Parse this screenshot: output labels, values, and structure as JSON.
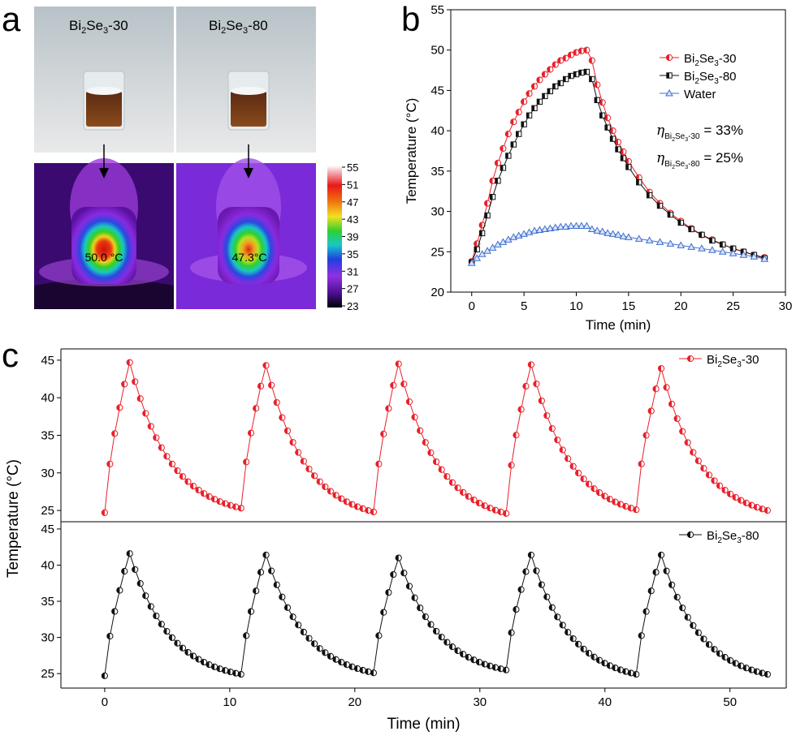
{
  "panel_a": {
    "letter": "a",
    "sample1": {
      "name": "Bi",
      "sub": "2",
      "name2": "Se",
      "sub2": "3",
      "suffix": "-30",
      "temp_label": "50.0 °C"
    },
    "sample2": {
      "name": "Bi",
      "sub": "2",
      "name2": "Se",
      "sub2": "3",
      "suffix": "-80",
      "temp_label": "47.3°C"
    },
    "colorbar": {
      "ticks": [
        55,
        51,
        47,
        43,
        39,
        35,
        31,
        27,
        23
      ]
    }
  },
  "panel_b_letter": "b",
  "panel_c_letter": "c",
  "eta": {
    "e1_sub": "Bi",
    "e1_sub2": "2",
    "e1_sub3": "Se",
    "e1_sub4": "3",
    "e1_sub5": "-30",
    "e1_val": " = 33%",
    "e2_sub": "Bi",
    "e2_sub2": "2",
    "e2_sub3": "Se",
    "e2_sub4": "3",
    "e2_sub5": "-80",
    "e2_val": " = 25%"
  },
  "legend_parts": {
    "bi": "Bi",
    "two": "2",
    "se": "Se",
    "three": "3",
    "s30": "-30",
    "s80": "-80"
  },
  "colors": {
    "red": "#e8202a",
    "black": "#111111",
    "blue": "#3f6fd1"
  },
  "chart_data": [
    {
      "id": "b",
      "type": "line",
      "title": "",
      "xlabel": "Time (min)",
      "ylabel": "Temperature (°C)",
      "xlim": [
        -2,
        30
      ],
      "ylim": [
        20,
        55
      ],
      "xticks": [
        0,
        5,
        10,
        15,
        20,
        25,
        30
      ],
      "yticks": [
        20,
        25,
        30,
        35,
        40,
        45,
        50,
        55
      ],
      "legend_position": "top-right",
      "series": [
        {
          "name": "Bi2Se3-30",
          "color": "#e8202a",
          "marker": "half-circle",
          "x": [
            0,
            0.5,
            1,
            1.5,
            2,
            2.5,
            3,
            3.5,
            4,
            4.5,
            5,
            5.5,
            6,
            6.5,
            7,
            7.5,
            8,
            8.5,
            9,
            9.5,
            10,
            10.5,
            11,
            11.5,
            12,
            12.5,
            13,
            13.5,
            14,
            14.5,
            15,
            16,
            17,
            18,
            19,
            20,
            21,
            22,
            23,
            24,
            25,
            26,
            27,
            28
          ],
          "y": [
            23.8,
            26.0,
            28.3,
            31.0,
            33.8,
            36.0,
            37.8,
            39.6,
            41.1,
            42.3,
            43.6,
            44.6,
            45.5,
            46.3,
            47.0,
            47.6,
            48.2,
            48.7,
            49.0,
            49.4,
            49.7,
            49.9,
            50.0,
            48.7,
            45.7,
            43.5,
            41.6,
            40.0,
            38.6,
            37.4,
            36.2,
            34.2,
            32.4,
            31.0,
            29.8,
            28.8,
            27.9,
            27.1,
            26.5,
            25.9,
            25.4,
            25.0,
            24.6,
            24.3
          ]
        },
        {
          "name": "Bi2Se3-80",
          "color": "#111111",
          "marker": "half-square",
          "x": [
            0,
            0.5,
            1,
            1.5,
            2,
            2.5,
            3,
            3.5,
            4,
            4.5,
            5,
            5.5,
            6,
            6.5,
            7,
            7.5,
            8,
            8.5,
            9,
            9.5,
            10,
            10.5,
            11,
            11.5,
            12,
            12.5,
            13,
            13.5,
            14,
            14.5,
            15,
            16,
            17,
            18,
            19,
            20,
            21,
            22,
            23,
            24,
            25,
            26,
            27,
            28
          ],
          "y": [
            23.7,
            25.3,
            27.3,
            29.5,
            31.8,
            33.8,
            35.4,
            36.9,
            38.3,
            39.6,
            40.8,
            41.9,
            42.8,
            43.6,
            44.3,
            44.9,
            45.5,
            45.9,
            46.4,
            46.8,
            47.0,
            47.2,
            47.3,
            46.4,
            43.8,
            41.9,
            40.4,
            39.0,
            37.7,
            36.6,
            35.5,
            33.6,
            32.0,
            30.7,
            29.6,
            28.6,
            27.8,
            27.1,
            26.4,
            25.9,
            25.4,
            25.0,
            24.6,
            24.2
          ]
        },
        {
          "name": "Water",
          "color": "#3f6fd1",
          "marker": "triangle",
          "x": [
            0,
            0.5,
            1,
            1.5,
            2,
            2.5,
            3,
            3.5,
            4,
            4.5,
            5,
            5.5,
            6,
            6.5,
            7,
            7.5,
            8,
            8.5,
            9,
            9.5,
            10,
            10.5,
            11,
            11.5,
            12,
            12.5,
            13,
            13.5,
            14,
            14.5,
            15,
            16,
            17,
            18,
            19,
            20,
            21,
            22,
            23,
            24,
            25,
            26,
            27,
            28
          ],
          "y": [
            23.6,
            24.2,
            24.7,
            25.1,
            25.5,
            25.9,
            26.2,
            26.5,
            26.8,
            27.0,
            27.2,
            27.4,
            27.6,
            27.7,
            27.8,
            27.9,
            28.0,
            28.1,
            28.1,
            28.2,
            28.2,
            28.2,
            28.2,
            27.8,
            27.6,
            27.5,
            27.3,
            27.2,
            27.1,
            26.9,
            26.8,
            26.6,
            26.4,
            26.2,
            26.0,
            25.8,
            25.6,
            25.4,
            25.2,
            25.0,
            24.8,
            24.6,
            24.4,
            24.1
          ]
        }
      ]
    },
    {
      "id": "c",
      "type": "line",
      "title": "",
      "xlabel": "Time (min)",
      "ylabel": "Temperature (°C)",
      "xlim": [
        -3.5,
        54.5
      ],
      "xticks": [
        0,
        10,
        20,
        30,
        40,
        50
      ],
      "subplots": [
        {
          "series_name": "Bi2Se3-30",
          "color": "#e8202a",
          "marker": "half-circle",
          "ylim": [
            23.5,
            46.5
          ],
          "yticks": [
            25,
            30,
            35,
            40,
            45
          ],
          "cycle_starts": [
            0,
            10.9,
            21.5,
            32.1,
            42.5
          ],
          "peaks": [
            44.7,
            44.3,
            44.5,
            44.4,
            43.9
          ],
          "starts": [
            24.7,
            25.3,
            24.8,
            24.6,
            25.1
          ],
          "final": 25.0
        },
        {
          "series_name": "Bi2Se3-80",
          "color": "#111111",
          "marker": "half-circle",
          "ylim": [
            23.0,
            46.0
          ],
          "yticks": [
            25,
            30,
            35,
            40,
            45
          ],
          "cycle_starts": [
            0,
            10.9,
            21.5,
            32.1,
            42.5
          ],
          "peaks": [
            41.6,
            41.4,
            41.0,
            41.4,
            41.4
          ],
          "starts": [
            24.7,
            24.9,
            25.1,
            25.5,
            24.9
          ],
          "final": 24.9
        }
      ]
    }
  ]
}
